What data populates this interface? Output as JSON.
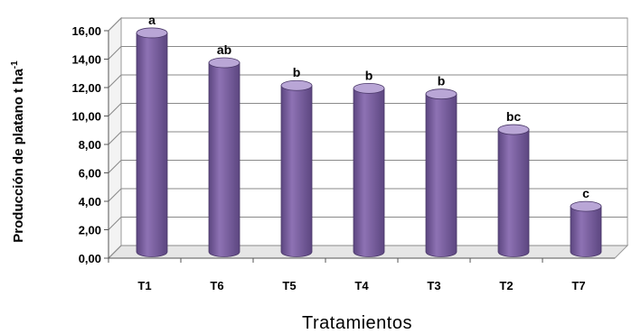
{
  "chart_data": {
    "type": "bar",
    "categories": [
      "T1",
      "T6",
      "T5",
      "T4",
      "T3",
      "T2",
      "T7"
    ],
    "values": [
      15.4,
      13.3,
      11.7,
      11.5,
      11.1,
      8.6,
      3.2
    ],
    "significance_letters": [
      "a",
      "ab",
      "b",
      "b",
      "b",
      "bc",
      "c"
    ],
    "ylim": [
      0,
      16
    ],
    "yticks": [
      "0,00",
      "2,00",
      "4,00",
      "6,00",
      "8,00",
      "10,00",
      "12,00",
      "14,00",
      "16,00"
    ],
    "xlabel": "Tratamientos",
    "ylabel": "Producción de platano t ha",
    "ylabel_superscript": "-1",
    "grid": true,
    "legend": "none",
    "bar_color": "#8e72b4",
    "bar_dark": "#5c4680",
    "bar_light": "#b9a6d6"
  }
}
